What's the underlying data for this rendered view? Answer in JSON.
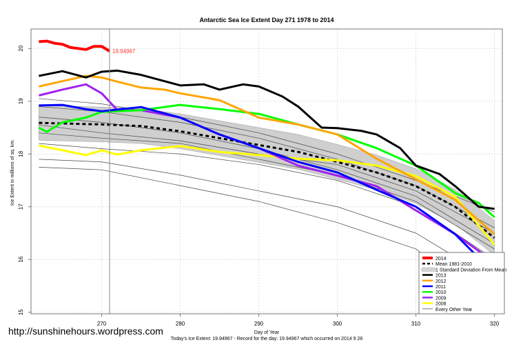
{
  "chart_data": {
    "type": "line",
    "title": "Antarctic Sea Ice Extent Day 271 1978 to 2014",
    "xlabel": "Day of Year",
    "ylabel": "Ice Extent in millions of sq. km.",
    "subtitle": "Today's Ice Extent: 19.94967  - Record for the day: 19.94967 which occurred on 2014 9 28",
    "xlim": [
      261,
      321
    ],
    "ylim": [
      14.97,
      20.37
    ],
    "xticks": [
      270,
      280,
      290,
      300,
      310,
      320
    ],
    "yticks": [
      15,
      16,
      17,
      18,
      19,
      20
    ],
    "grid": true,
    "current_day": 271,
    "current_value_label": "19.94967",
    "legend_position": "bottom-right",
    "legend": [
      {
        "label": "2014",
        "color": "#ff0000",
        "style": "thick"
      },
      {
        "label": "Mean 1981-2010",
        "color": "#000000",
        "style": "dashed"
      },
      {
        "label": "1 Standard Deviation From Mean",
        "color": "#d3d3d3",
        "style": "band"
      },
      {
        "label": "2013",
        "color": "#000000",
        "style": "solid"
      },
      {
        "label": "2012",
        "color": "#ffa500",
        "style": "solid"
      },
      {
        "label": "2011",
        "color": "#0000ff",
        "style": "solid"
      },
      {
        "label": "2010",
        "color": "#00ff00",
        "style": "solid"
      },
      {
        "label": "2009",
        "color": "#a020f0",
        "style": "solid"
      },
      {
        "label": "2008",
        "color": "#ffff00",
        "style": "solid"
      },
      {
        "label": "Every Other Year",
        "color": "#555555",
        "style": "thin"
      }
    ],
    "mean": {
      "x": [
        262,
        270,
        275,
        280,
        285,
        290,
        295,
        300,
        305,
        310,
        315,
        320
      ],
      "y": [
        18.59,
        18.56,
        18.53,
        18.43,
        18.3,
        18.17,
        18.04,
        17.85,
        17.65,
        17.39,
        17.0,
        16.41
      ]
    },
    "sd": 0.33,
    "series": [
      {
        "name": "2014",
        "color": "#ff0000",
        "width": 4,
        "x": [
          262,
          263,
          264,
          265,
          266,
          267,
          268,
          269,
          270,
          271
        ],
        "y": [
          20.13,
          20.14,
          20.1,
          20.08,
          20.02,
          20.0,
          19.98,
          20.04,
          20.04,
          19.95
        ]
      },
      {
        "name": "2013",
        "color": "#000000",
        "width": 3,
        "x": [
          262,
          265,
          268,
          270,
          272,
          275,
          280,
          283,
          285,
          288,
          290,
          293,
          295,
          298,
          300,
          303,
          305,
          308,
          310,
          313,
          315,
          318,
          320
        ],
        "y": [
          19.48,
          19.57,
          19.45,
          19.56,
          19.58,
          19.5,
          19.3,
          19.32,
          19.22,
          19.32,
          19.28,
          19.09,
          18.9,
          18.5,
          18.49,
          18.44,
          18.37,
          18.11,
          17.78,
          17.62,
          17.39,
          17.0,
          16.96
        ]
      },
      {
        "name": "2012",
        "color": "#ffa500",
        "width": 3,
        "x": [
          262,
          265,
          268,
          270,
          272,
          275,
          278,
          280,
          285,
          290,
          295,
          300,
          305,
          310,
          315,
          320
        ],
        "y": [
          19.28,
          19.38,
          19.48,
          19.45,
          19.37,
          19.26,
          19.22,
          19.15,
          19.02,
          18.69,
          18.56,
          18.37,
          17.91,
          17.52,
          17.13,
          16.48
        ]
      },
      {
        "name": "2011",
        "color": "#0000ff",
        "width": 3,
        "x": [
          262,
          265,
          268,
          270,
          275,
          280,
          285,
          290,
          295,
          300,
          305,
          310,
          315,
          320
        ],
        "y": [
          18.92,
          18.93,
          18.85,
          18.81,
          18.89,
          18.69,
          18.37,
          18.11,
          17.85,
          17.65,
          17.32,
          17.0,
          16.48,
          15.73
        ]
      },
      {
        "name": "2010",
        "color": "#00ff00",
        "width": 3,
        "x": [
          262,
          263,
          265,
          268,
          270,
          275,
          280,
          285,
          290,
          295,
          300,
          305,
          310,
          315,
          318,
          320
        ],
        "y": [
          18.5,
          18.42,
          18.6,
          18.69,
          18.8,
          18.83,
          18.93,
          18.85,
          18.76,
          18.56,
          18.37,
          18.11,
          17.78,
          17.26,
          17.07,
          16.8
        ]
      },
      {
        "name": "2009",
        "color": "#a020f0",
        "width": 3,
        "x": [
          262,
          265,
          268,
          270,
          272,
          275,
          280,
          285,
          290,
          295,
          300,
          305,
          310,
          315,
          320
        ],
        "y": [
          19.11,
          19.22,
          19.32,
          19.15,
          18.83,
          18.83,
          18.69,
          18.37,
          18.11,
          17.78,
          17.59,
          17.39,
          16.93,
          16.48,
          15.95
        ]
      },
      {
        "name": "2008",
        "color": "#ffff00",
        "width": 3,
        "x": [
          262,
          265,
          268,
          270,
          272,
          275,
          280,
          285,
          290,
          295,
          300,
          305,
          310,
          315,
          320
        ],
        "y": [
          18.16,
          18.07,
          17.98,
          18.07,
          17.99,
          18.07,
          18.15,
          18.04,
          17.98,
          17.91,
          17.88,
          17.78,
          17.58,
          17.19,
          16.28
        ]
      }
    ],
    "other_years": [
      {
        "x": [
          262,
          270,
          280,
          290,
          300,
          310,
          320
        ],
        "y": [
          18.9,
          18.8,
          18.6,
          18.3,
          17.9,
          17.4,
          16.6
        ]
      },
      {
        "x": [
          262,
          270,
          280,
          290,
          300,
          310,
          320
        ],
        "y": [
          18.7,
          18.6,
          18.4,
          18.1,
          17.7,
          17.2,
          16.3
        ]
      },
      {
        "x": [
          262,
          270,
          280,
          290,
          300,
          310,
          320
        ],
        "y": [
          18.4,
          18.3,
          18.2,
          17.9,
          17.6,
          17.1,
          16.2
        ]
      },
      {
        "x": [
          262,
          270,
          280,
          290,
          300,
          310,
          320
        ],
        "y": [
          18.2,
          18.1,
          18.0,
          17.8,
          17.5,
          17.0,
          16.0
        ]
      },
      {
        "x": [
          262,
          270,
          280,
          290,
          300,
          310,
          320
        ],
        "y": [
          17.9,
          17.85,
          17.6,
          17.3,
          17.0,
          16.5,
          15.6
        ]
      },
      {
        "x": [
          262,
          270,
          280,
          290,
          300,
          310,
          318
        ],
        "y": [
          17.75,
          17.7,
          17.4,
          17.1,
          16.7,
          16.2,
          15.25
        ]
      },
      {
        "x": [
          262,
          270,
          280,
          290,
          300,
          310,
          320
        ],
        "y": [
          19.05,
          18.95,
          18.7,
          18.4,
          18.0,
          17.5,
          16.9
        ]
      },
      {
        "x": [
          262,
          270,
          280,
          290,
          300,
          310,
          320
        ],
        "y": [
          18.55,
          18.4,
          18.25,
          18.0,
          17.8,
          17.3,
          16.5
        ]
      }
    ]
  },
  "watermark": "http://sunshinehours.wordpress.com"
}
